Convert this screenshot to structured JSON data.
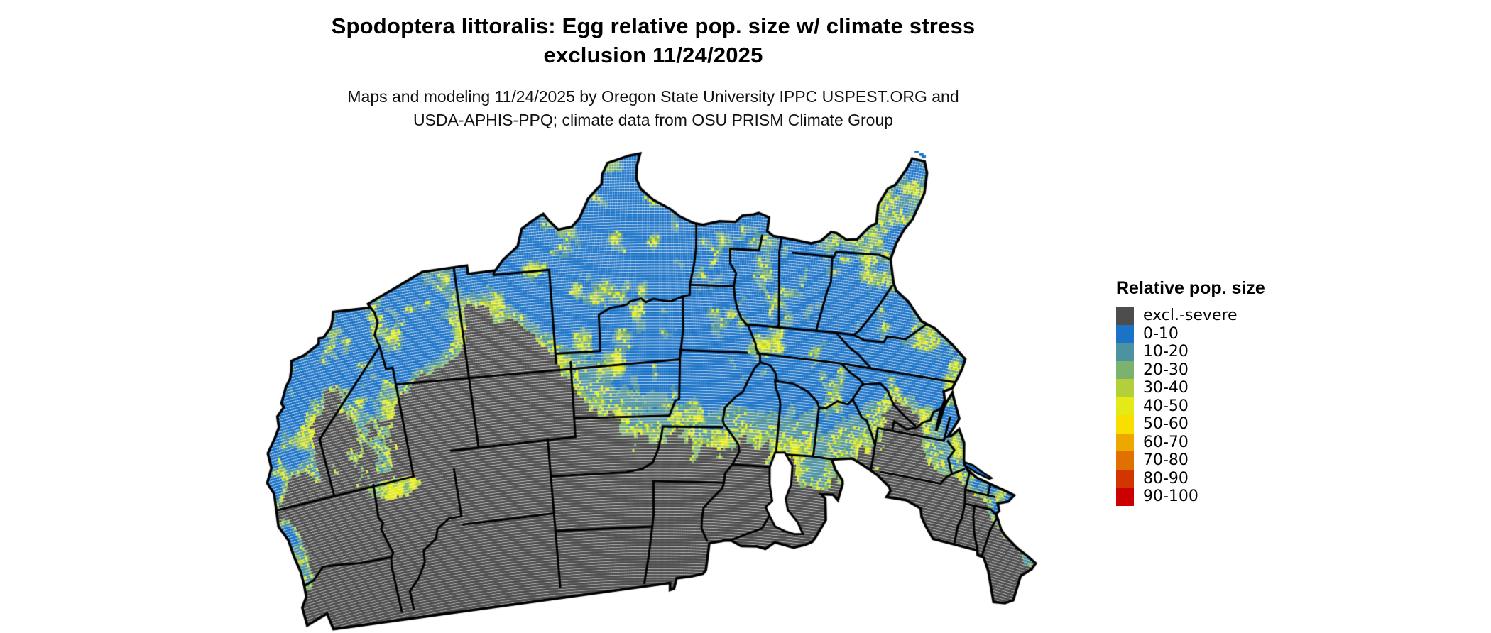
{
  "title": {
    "line1": "Spodoptera littoralis: Egg relative pop. size w/ climate stress",
    "line2": "exclusion 11/24/2025"
  },
  "subtitle": {
    "line1": "Maps and modeling 11/24/2025 by Oregon State University IPPC USPEST.ORG and",
    "line2": "USDA-APHIS-PPQ; climate data from OSU PRISM Climate Group"
  },
  "legend": {
    "title": "Relative pop. size",
    "items": [
      {
        "label": "excl.-severe",
        "color": "#4D4D4D"
      },
      {
        "label": "0-10",
        "color": "#1B73C7"
      },
      {
        "label": "10-20",
        "color": "#4D92A0"
      },
      {
        "label": "20-30",
        "color": "#7BB26E"
      },
      {
        "label": "30-40",
        "color": "#B3D03C"
      },
      {
        "label": "40-50",
        "color": "#E3EA15"
      },
      {
        "label": "50-60",
        "color": "#F8DF00"
      },
      {
        "label": "60-70",
        "color": "#EDA800"
      },
      {
        "label": "70-80",
        "color": "#E07000"
      },
      {
        "label": "80-90",
        "color": "#D23600"
      },
      {
        "label": "90-100",
        "color": "#CC0000"
      }
    ]
  },
  "map": {
    "area": "contiguous-united-states",
    "water_color": "#FFFFFF",
    "border_color": "#000000"
  }
}
